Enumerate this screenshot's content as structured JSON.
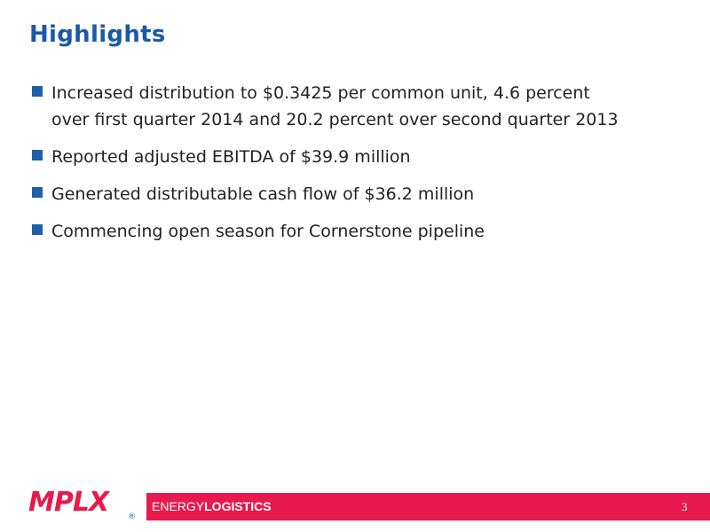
{
  "header": {
    "title": "Highlights"
  },
  "bullets": [
    {
      "lines": [
        "Increased distribution to $0.3425 per common unit, 4.6 percent",
        "over first quarter 2014 and 20.2 percent over second quarter 2013"
      ]
    },
    {
      "lines": [
        "Reported adjusted EBITDA of $39.9 million"
      ]
    },
    {
      "lines": [
        "Generated distributable cash flow of $36.2 million"
      ]
    },
    {
      "lines": [
        "Commencing open season for Cornerstone pipeline"
      ]
    }
  ],
  "footer": {
    "logo": "MPLX",
    "registered": "®",
    "tagline_light": "ENERGY",
    "tagline_bold": "LOGISTICS",
    "page_number": "3"
  }
}
